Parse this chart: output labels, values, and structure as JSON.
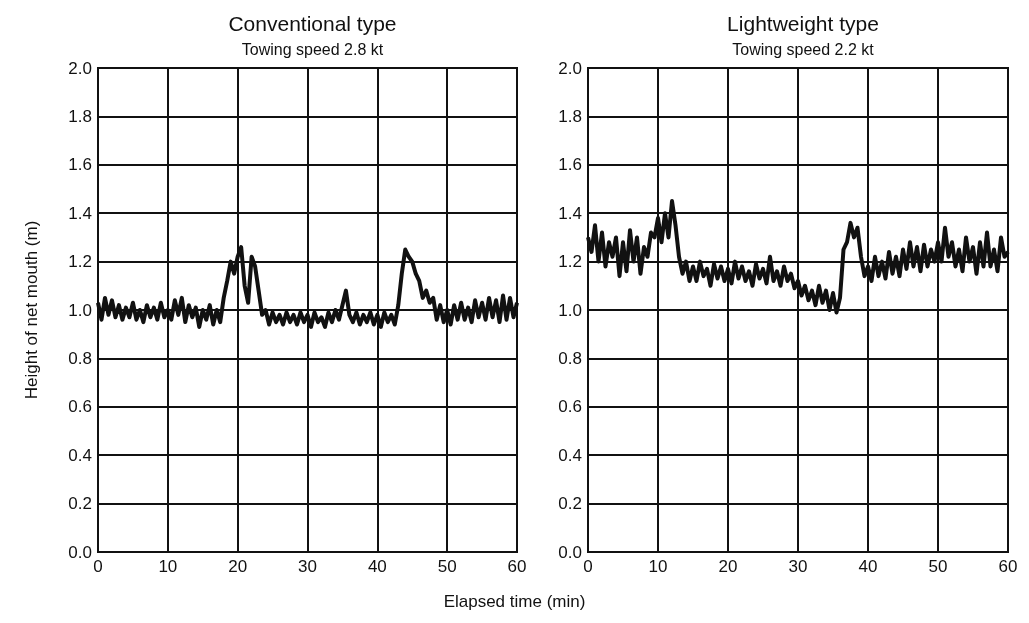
{
  "chart_data": [
    {
      "type": "line",
      "title": "Conventional type",
      "subtitle": "Towing speed 2.8 kt",
      "xlabel": "Elapsed time (min)",
      "ylabel": "Height of net mouth (m)",
      "xlim": [
        0,
        60
      ],
      "xticks": [
        0,
        10,
        20,
        30,
        40,
        50,
        60
      ],
      "ylim": [
        0,
        2
      ],
      "yticks": [
        {
          "value": 0,
          "label": "0.0"
        },
        {
          "value": 0.2,
          "label": "0.2"
        },
        {
          "value": 0.4,
          "label": "0.4"
        },
        {
          "value": 0.6,
          "label": "0.6"
        },
        {
          "value": 0.8,
          "label": "0.8"
        },
        {
          "value": 1,
          "label": "1.0"
        },
        {
          "value": 1.2,
          "label": "1.2"
        },
        {
          "value": 1.4,
          "label": "1.4"
        },
        {
          "value": 1.6,
          "label": "1.6"
        },
        {
          "value": 1.8,
          "label": "1.8"
        },
        {
          "value": 2,
          "label": "2.0"
        }
      ],
      "grid": true,
      "marker": "none",
      "line_style": "solid",
      "x": [
        0,
        0.5,
        1,
        1.5,
        2,
        2.5,
        3,
        3.5,
        4,
        4.5,
        5,
        5.5,
        6,
        6.5,
        7,
        7.5,
        8,
        8.5,
        9,
        9.5,
        10,
        10.5,
        11,
        11.5,
        12,
        12.5,
        13,
        13.5,
        14,
        14.5,
        15,
        15.5,
        16,
        16.5,
        17,
        17.5,
        18,
        18.5,
        19,
        19.5,
        20,
        20.5,
        21,
        21.5,
        22,
        22.5,
        23,
        23.5,
        24,
        24.5,
        25,
        25.5,
        26,
        26.5,
        27,
        27.5,
        28,
        28.5,
        29,
        29.5,
        30,
        30.5,
        31,
        31.5,
        32,
        32.5,
        33,
        33.5,
        34,
        34.5,
        35,
        35.5,
        36,
        36.5,
        37,
        37.5,
        38,
        38.5,
        39,
        39.5,
        40,
        40.5,
        41,
        41.5,
        42,
        42.5,
        43,
        43.5,
        44,
        44.5,
        45,
        45.5,
        46,
        46.5,
        47,
        47.5,
        48,
        48.5,
        49,
        49.5,
        50,
        50.5,
        51,
        51.5,
        52,
        52.5,
        53,
        53.5,
        54,
        54.5,
        55,
        55.5,
        56,
        56.5,
        57,
        57.5,
        58,
        58.5,
        59,
        59.5,
        60
      ],
      "series": [
        {
          "color": "#111111",
          "values": [
            1.03,
            0.96,
            1.05,
            0.98,
            1.04,
            0.97,
            1.02,
            0.96,
            1.01,
            0.97,
            1.03,
            0.96,
            1.0,
            0.95,
            1.02,
            0.97,
            1.01,
            0.96,
            1.03,
            0.97,
            1.0,
            0.96,
            1.04,
            0.98,
            1.05,
            0.95,
            1.02,
            0.97,
            1.01,
            0.93,
            1.0,
            0.96,
            1.02,
            0.94,
            1.0,
            0.95,
            1.05,
            1.12,
            1.2,
            1.15,
            1.22,
            1.26,
            1.1,
            1.03,
            1.22,
            1.18,
            1.08,
            0.98,
            1.0,
            0.94,
            0.99,
            0.95,
            0.98,
            0.94,
            0.99,
            0.95,
            0.98,
            0.94,
            0.99,
            0.95,
            0.98,
            0.93,
            0.99,
            0.95,
            0.97,
            0.93,
            0.99,
            0.95,
            1.0,
            0.96,
            1.02,
            1.08,
            0.98,
            0.95,
            0.99,
            0.94,
            0.98,
            0.95,
            0.99,
            0.94,
            0.98,
            0.93,
            0.99,
            0.95,
            0.98,
            0.94,
            1.02,
            1.15,
            1.25,
            1.22,
            1.2,
            1.15,
            1.12,
            1.05,
            1.08,
            1.03,
            1.05,
            0.96,
            1.02,
            0.95,
            1.0,
            0.94,
            1.02,
            0.96,
            1.03,
            0.96,
            1.01,
            0.95,
            1.04,
            0.97,
            1.03,
            0.96,
            1.05,
            0.97,
            1.04,
            0.95,
            1.06,
            0.96,
            1.05,
            0.97,
            1.03
          ]
        }
      ]
    },
    {
      "type": "line",
      "title": "Lightweight type",
      "subtitle": "Towing speed 2.2 kt",
      "xlim": [
        0,
        60
      ],
      "xticks": [
        0,
        10,
        20,
        30,
        40,
        50,
        60
      ],
      "ylim": [
        0,
        2
      ],
      "yticks": [
        {
          "value": 0,
          "label": "0.0"
        },
        {
          "value": 0.2,
          "label": "0.2"
        },
        {
          "value": 0.4,
          "label": "0.4"
        },
        {
          "value": 0.6,
          "label": "0.6"
        },
        {
          "value": 0.8,
          "label": "0.8"
        },
        {
          "value": 1,
          "label": "1.0"
        },
        {
          "value": 1.2,
          "label": "1.2"
        },
        {
          "value": 1.4,
          "label": "1.4"
        },
        {
          "value": 1.6,
          "label": "1.6"
        },
        {
          "value": 1.8,
          "label": "1.8"
        },
        {
          "value": 2,
          "label": "2.0"
        }
      ],
      "grid": true,
      "marker": "none",
      "line_style": "solid",
      "x": [
        0,
        0.5,
        1,
        1.5,
        2,
        2.5,
        3,
        3.5,
        4,
        4.5,
        5,
        5.5,
        6,
        6.5,
        7,
        7.5,
        8,
        8.5,
        9,
        9.5,
        10,
        10.5,
        11,
        11.5,
        12,
        12.5,
        13,
        13.5,
        14,
        14.5,
        15,
        15.5,
        16,
        16.5,
        17,
        17.5,
        18,
        18.5,
        19,
        19.5,
        20,
        20.5,
        21,
        21.5,
        22,
        22.5,
        23,
        23.5,
        24,
        24.5,
        25,
        25.5,
        26,
        26.5,
        27,
        27.5,
        28,
        28.5,
        29,
        29.5,
        30,
        30.5,
        31,
        31.5,
        32,
        32.5,
        33,
        33.5,
        34,
        34.5,
        35,
        35.5,
        36,
        36.5,
        37,
        37.5,
        38,
        38.5,
        39,
        39.5,
        40,
        40.5,
        41,
        41.5,
        42,
        42.5,
        43,
        43.5,
        44,
        44.5,
        45,
        45.5,
        46,
        46.5,
        47,
        47.5,
        48,
        48.5,
        49,
        49.5,
        50,
        50.5,
        51,
        51.5,
        52,
        52.5,
        53,
        53.5,
        54,
        54.5,
        55,
        55.5,
        56,
        56.5,
        57,
        57.5,
        58,
        58.5,
        59,
        59.5,
        60
      ],
      "series": [
        {
          "color": "#111111",
          "values": [
            1.3,
            1.24,
            1.35,
            1.2,
            1.32,
            1.18,
            1.28,
            1.22,
            1.3,
            1.14,
            1.28,
            1.16,
            1.33,
            1.2,
            1.3,
            1.15,
            1.26,
            1.22,
            1.32,
            1.3,
            1.38,
            1.28,
            1.4,
            1.3,
            1.45,
            1.35,
            1.22,
            1.15,
            1.2,
            1.12,
            1.18,
            1.12,
            1.2,
            1.14,
            1.17,
            1.1,
            1.19,
            1.13,
            1.18,
            1.12,
            1.17,
            1.11,
            1.2,
            1.13,
            1.18,
            1.12,
            1.16,
            1.1,
            1.19,
            1.13,
            1.17,
            1.11,
            1.22,
            1.12,
            1.16,
            1.1,
            1.18,
            1.12,
            1.15,
            1.09,
            1.12,
            1.06,
            1.1,
            1.04,
            1.08,
            1.02,
            1.1,
            1.03,
            1.08,
            1.0,
            1.07,
            0.99,
            1.05,
            1.25,
            1.28,
            1.36,
            1.3,
            1.34,
            1.22,
            1.14,
            1.18,
            1.12,
            1.22,
            1.14,
            1.2,
            1.13,
            1.24,
            1.15,
            1.22,
            1.14,
            1.25,
            1.17,
            1.28,
            1.18,
            1.26,
            1.16,
            1.27,
            1.18,
            1.25,
            1.2,
            1.28,
            1.2,
            1.34,
            1.22,
            1.28,
            1.18,
            1.25,
            1.16,
            1.3,
            1.2,
            1.26,
            1.15,
            1.28,
            1.18,
            1.32,
            1.18,
            1.25,
            1.16,
            1.3,
            1.22,
            1.24
          ]
        }
      ]
    }
  ]
}
